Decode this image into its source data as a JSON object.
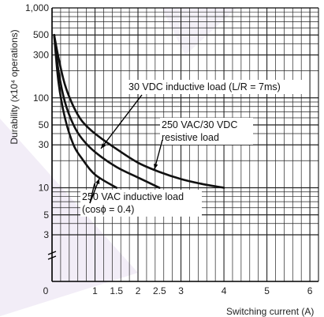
{
  "chart_data": {
    "type": "line",
    "title": "",
    "xlabel": "Switching current (A)",
    "ylabel": "Durability (x10⁴ operations)",
    "x_scale": "linear",
    "y_scale": "log",
    "xlim": [
      0,
      6.2
    ],
    "ylim": [
      1,
      1000
    ],
    "grid": true,
    "x_ticks": [
      "0",
      "1",
      "1.5",
      "2",
      "2.5",
      "3",
      "4",
      "5",
      "6"
    ],
    "y_ticks": [
      "1,000",
      "500",
      "300",
      "100",
      "50",
      "30",
      "10",
      "5",
      "3"
    ],
    "series": [
      {
        "name": "30 VDC inductive load (L/R = 7ms)",
        "x": [
          0.05,
          0.15,
          0.3,
          0.5,
          0.7,
          1.0,
          1.5
        ],
        "y": [
          500,
          150,
          60,
          30,
          21,
          14,
          10
        ]
      },
      {
        "name": "250 VAC/30 VDC resistive load",
        "x": [
          0.05,
          0.15,
          0.3,
          0.5,
          0.7,
          1.0,
          1.5,
          2.0,
          2.5
        ],
        "y": [
          500,
          200,
          90,
          50,
          35,
          25,
          17,
          13,
          10
        ]
      },
      {
        "name": "250 VAC inductive load (cosϕ = 0.4)",
        "x": [
          0.05,
          0.15,
          0.3,
          0.5,
          0.7,
          1.0,
          1.5,
          2.0,
          2.5,
          3.0,
          3.5,
          4.0
        ],
        "y": [
          500,
          280,
          140,
          80,
          55,
          40,
          27,
          19,
          15,
          12.5,
          11,
          10
        ]
      }
    ],
    "annotations": [
      {
        "lines": [
          "30 VDC inductive load (L/R = 7ms)"
        ]
      },
      {
        "lines": [
          "250 VAC/30 VDC",
          "resistive load"
        ]
      },
      {
        "lines": [
          "250 VAC inductive load",
          "(cosϕ = 0.4)"
        ]
      }
    ],
    "colors": {
      "grid": "#222222",
      "curve": "#111111",
      "watermark": "#e7dff0"
    }
  }
}
